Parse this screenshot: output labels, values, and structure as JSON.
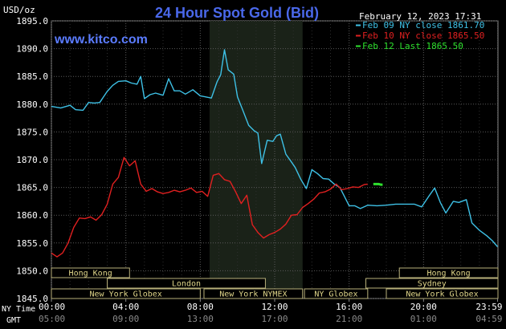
{
  "header": {
    "title": "24 Hour Spot Gold (Bid)",
    "site": "www.kitco.com",
    "date": "February 12, 2023 17:31",
    "unit": "USD/oz"
  },
  "axis_labels": {
    "ny_time": "NY Time",
    "gmt": "GMT"
  },
  "chart_data": {
    "type": "line",
    "title": "24 Hour Spot Gold (Bid)",
    "ylabel": "USD/oz",
    "ylim": [
      1845,
      1895
    ],
    "xlim": [
      0,
      24
    ],
    "y_ticks": [
      "1895.0",
      "1890.0",
      "1885.0",
      "1880.0",
      "1875.0",
      "1870.0",
      "1865.0",
      "1860.0",
      "1855.0",
      "1850.0",
      "1845.0"
    ],
    "y_tick_values": [
      1895,
      1890,
      1885,
      1880,
      1875,
      1870,
      1865,
      1860,
      1855,
      1850,
      1845
    ],
    "x_ticks_ny": [
      "00:00",
      "04:00",
      "08:00",
      "12:00",
      "16:00",
      "20:00",
      "23:59"
    ],
    "x_ticks_gmt": [
      "05:00",
      "09:00",
      "13:00",
      "17:00",
      "21:00",
      "01:00",
      "04:59"
    ],
    "x_tick_hours": [
      0,
      4,
      8,
      12,
      16,
      20,
      23.98
    ],
    "grid": true,
    "highlight_hours": [
      8.5,
      13.5
    ],
    "legend_position": "top-right",
    "series": [
      {
        "name": "Feb 09 NY close 1861.70",
        "color": "#3ec1e6",
        "x": [
          0,
          0.5,
          1.0,
          1.3,
          1.7,
          2.0,
          2.3,
          2.6,
          3.0,
          3.3,
          3.6,
          4.0,
          4.3,
          4.6,
          4.8,
          5.0,
          5.3,
          5.6,
          6.0,
          6.3,
          6.6,
          6.9,
          7.2,
          7.6,
          8.0,
          8.3,
          8.6,
          8.9,
          9.1,
          9.3,
          9.5,
          9.8,
          10.0,
          10.3,
          10.6,
          10.9,
          11.1,
          11.3,
          11.6,
          11.9,
          12.1,
          12.3,
          12.6,
          12.9,
          13.1,
          13.4,
          13.7,
          14.0,
          14.3,
          14.6,
          14.9,
          15.2,
          15.5,
          15.7,
          16.0,
          16.3,
          16.6,
          17.0,
          17.5,
          18.0,
          18.5,
          19.0,
          19.5,
          19.9,
          20.3,
          20.6,
          20.9,
          21.2,
          21.6,
          21.9,
          22.3,
          22.6,
          23.0,
          23.4,
          23.7,
          23.98
        ],
        "values": [
          1879.6,
          1879.3,
          1879.8,
          1879.0,
          1878.9,
          1880.3,
          1880.2,
          1880.3,
          1882.3,
          1883.4,
          1884.1,
          1884.2,
          1883.8,
          1883.6,
          1885.0,
          1881.0,
          1881.7,
          1882.0,
          1881.6,
          1884.6,
          1882.4,
          1882.4,
          1881.8,
          1882.6,
          1881.5,
          1881.3,
          1881.1,
          1884.0,
          1885.3,
          1889.8,
          1886.2,
          1885.4,
          1881.3,
          1878.8,
          1876.2,
          1875.2,
          1874.8,
          1869.3,
          1873.5,
          1873.3,
          1874.3,
          1874.6,
          1871.0,
          1869.6,
          1868.6,
          1866.5,
          1864.8,
          1868.2,
          1867.5,
          1866.6,
          1866.5,
          1865.6,
          1865.0,
          1863.7,
          1861.7,
          1861.7,
          1861.2,
          1861.8,
          1861.7,
          1861.8,
          1862.0,
          1862.0,
          1862.0,
          1861.5,
          1863.5,
          1864.9,
          1862.3,
          1860.4,
          1862.5,
          1862.3,
          1862.8,
          1858.6,
          1857.3,
          1856.3,
          1855.4,
          1854.3
        ]
      },
      {
        "name": "Feb 10 NY close 1865.50",
        "color": "#e02020",
        "x": [
          0,
          0.3,
          0.6,
          0.9,
          1.2,
          1.5,
          1.8,
          2.1,
          2.4,
          2.7,
          3.0,
          3.3,
          3.6,
          3.9,
          4.2,
          4.5,
          4.8,
          5.1,
          5.4,
          5.7,
          6.0,
          6.3,
          6.6,
          6.9,
          7.2,
          7.5,
          7.8,
          8.1,
          8.4,
          8.7,
          9.0,
          9.3,
          9.6,
          9.9,
          10.2,
          10.5,
          10.8,
          11.1,
          11.4,
          11.7,
          12.0,
          12.3,
          12.6,
          12.9,
          13.2,
          13.5,
          13.8,
          14.1,
          14.4,
          14.7,
          15.0,
          15.3,
          15.6,
          15.9,
          16.2,
          16.5,
          16.8,
          17.0
        ],
        "values": [
          1853.2,
          1852.5,
          1853.2,
          1855.0,
          1857.8,
          1859.5,
          1859.4,
          1859.7,
          1859.1,
          1860.1,
          1862.0,
          1865.6,
          1866.8,
          1870.4,
          1868.9,
          1869.8,
          1865.6,
          1864.3,
          1864.8,
          1864.2,
          1863.9,
          1864.1,
          1864.5,
          1864.2,
          1864.5,
          1864.9,
          1864.1,
          1864.3,
          1863.4,
          1867.2,
          1867.5,
          1866.4,
          1866.1,
          1864.2,
          1862.1,
          1863.6,
          1858.3,
          1856.9,
          1855.9,
          1856.5,
          1856.9,
          1857.5,
          1858.4,
          1860.0,
          1860.1,
          1861.4,
          1862.1,
          1862.9,
          1864.0,
          1864.2,
          1864.7,
          1865.6,
          1864.6,
          1864.8,
          1865.1,
          1865.0,
          1865.5,
          1865.6
        ]
      },
      {
        "name": "Feb 12 Last 1865.50",
        "color": "#2ee02e",
        "x": [
          17.3,
          17.5,
          17.6,
          17.7,
          17.8
        ],
        "values": [
          1865.6,
          1865.6,
          1865.6,
          1865.5,
          1865.5
        ]
      }
    ],
    "sessions": [
      {
        "name": "Hong Kong",
        "start": -1,
        "end": 4.2,
        "row": 0
      },
      {
        "name": "London",
        "start": 3.0,
        "end": 11.5,
        "row": 1
      },
      {
        "name": "New York Globex",
        "start": -1,
        "end": 8.0,
        "row": 2
      },
      {
        "name": "New York NYMEX",
        "start": 8.2,
        "end": 13.5,
        "row": 2
      },
      {
        "name": "NY Globex",
        "start": 13.6,
        "end": 17.0,
        "row": 2
      },
      {
        "name": "Hong Kong",
        "start": 18.7,
        "end": 25,
        "row": 0
      },
      {
        "name": "Sydney",
        "start": 16.9,
        "end": 25,
        "row": 1
      },
      {
        "name": "New York Globex",
        "start": 18.0,
        "end": 25,
        "row": 2
      }
    ]
  }
}
